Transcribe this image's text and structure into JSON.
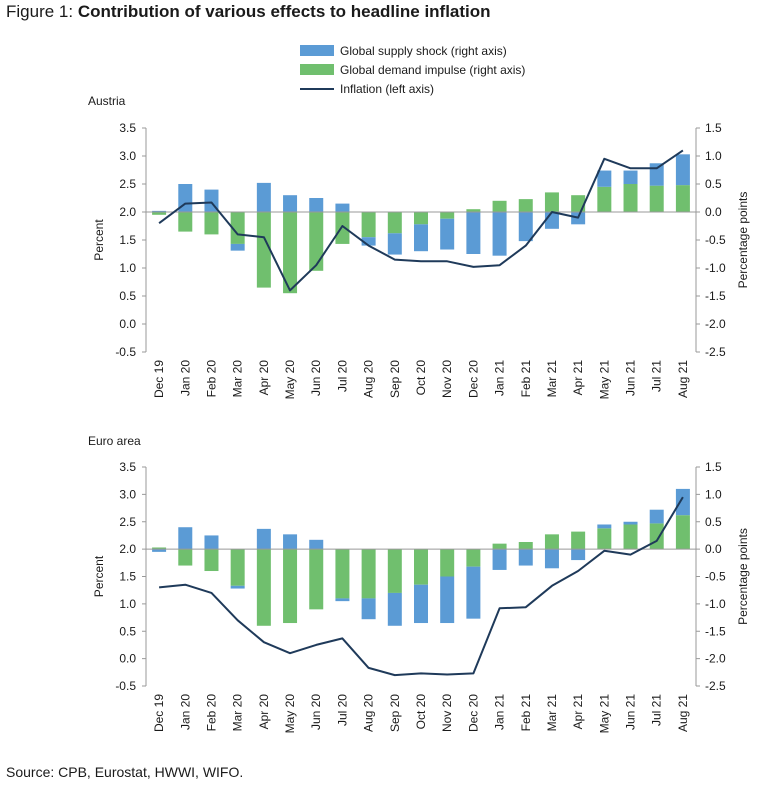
{
  "figure": {
    "prefix": "Figure 1: ",
    "title": "Contribution of various effects to headline inflation",
    "source": "Source: CPB, Eurostat, HWWI, WIFO."
  },
  "legend": {
    "supply": "Global supply shock (right axis)",
    "demand": "Global demand impulse (right axis)",
    "inflation": "Inflation (left axis)"
  },
  "colors": {
    "supply": "#5b9bd5",
    "demand": "#70bf6e",
    "inflation": "#1f3a5a",
    "axis": "#999999"
  },
  "chart_data": [
    {
      "type": "bar",
      "title": "Austria",
      "categories": [
        "Dec 19",
        "Jan 20",
        "Feb 20",
        "Mar 20",
        "Apr 20",
        "May 20",
        "Jun 20",
        "Jul 20",
        "Aug 20",
        "Sep 20",
        "Oct 20",
        "Nov 20",
        "Dec 20",
        "Jan 21",
        "Feb 21",
        "Mar 21",
        "Apr 21",
        "May 21",
        "Jun 21",
        "Jul 21",
        "Aug 21"
      ],
      "ylabel_left": "Percent",
      "ylabel_right": "Percentage points",
      "ylim_left": [
        -0.5,
        3.5
      ],
      "ylim_right": [
        -2.5,
        1.5
      ],
      "yticks_left": [
        "3.5",
        "3.0",
        "2.5",
        "2.0",
        "1.5",
        "1.0",
        "0.5",
        "0.0",
        "-0.5"
      ],
      "yticks_right": [
        "1.5",
        "1.0",
        "0.5",
        "0.0",
        "-0.5",
        "-1.0",
        "-1.5",
        "-2.0",
        "-2.5"
      ],
      "series": [
        {
          "name": "Global supply shock (right axis)",
          "axis": "right",
          "values": [
            0.02,
            0.5,
            0.4,
            -0.12,
            0.52,
            0.3,
            0.25,
            0.15,
            -0.15,
            -0.38,
            -0.48,
            -0.55,
            -0.75,
            -0.78,
            -0.52,
            -0.3,
            -0.22,
            0.29,
            0.24,
            0.4,
            0.55
          ]
        },
        {
          "name": "Global demand impulse (right axis)",
          "axis": "right",
          "values": [
            -0.05,
            -0.35,
            -0.4,
            -0.57,
            -1.35,
            -1.45,
            -1.05,
            -0.57,
            -0.45,
            -0.38,
            -0.22,
            -0.12,
            0.05,
            0.2,
            0.23,
            0.35,
            0.3,
            0.45,
            0.5,
            0.47,
            0.48
          ]
        },
        {
          "name": "Inflation (left axis)",
          "axis": "left",
          "values": [
            1.8,
            2.15,
            2.17,
            1.6,
            1.55,
            0.6,
            1.05,
            1.75,
            1.4,
            1.15,
            1.12,
            1.12,
            1.02,
            1.05,
            1.4,
            2.0,
            1.9,
            2.95,
            2.78,
            2.78,
            3.1
          ]
        }
      ]
    },
    {
      "type": "bar",
      "title": "Euro area",
      "categories": [
        "Dec 19",
        "Jan 20",
        "Feb 20",
        "Mar 20",
        "Apr 20",
        "May 20",
        "Jun 20",
        "Jul 20",
        "Aug 20",
        "Sep 20",
        "Oct 20",
        "Nov 20",
        "Dec 20",
        "Jan 21",
        "Feb 21",
        "Mar 21",
        "Apr 21",
        "May 21",
        "Jun 21",
        "Jul 21",
        "Aug 21"
      ],
      "ylabel_left": "Percent",
      "ylabel_right": "Percentage points",
      "ylim_left": [
        -0.5,
        3.5
      ],
      "ylim_right": [
        -2.5,
        1.5
      ],
      "yticks_left": [
        "3.5",
        "3.0",
        "2.5",
        "2.0",
        "1.5",
        "1.0",
        "0.5",
        "0.0",
        "-0.5"
      ],
      "yticks_right": [
        "1.5",
        "1.0",
        "0.5",
        "0.0",
        "-0.5",
        "-1.0",
        "-1.5",
        "-2.0",
        "-2.5"
      ],
      "series": [
        {
          "name": "Global supply shock (right axis)",
          "axis": "right",
          "values": [
            -0.05,
            0.4,
            0.25,
            -0.05,
            0.37,
            0.27,
            0.17,
            -0.05,
            -0.38,
            -0.6,
            -0.7,
            -0.85,
            -0.95,
            -0.38,
            -0.3,
            -0.35,
            -0.2,
            0.07,
            0.05,
            0.25,
            0.48
          ]
        },
        {
          "name": "Global demand impulse (right axis)",
          "axis": "right",
          "values": [
            0.03,
            -0.3,
            -0.4,
            -0.67,
            -1.4,
            -1.35,
            -1.1,
            -0.9,
            -0.9,
            -0.8,
            -0.65,
            -0.5,
            -0.32,
            0.1,
            0.13,
            0.27,
            0.32,
            0.38,
            0.45,
            0.47,
            0.62
          ]
        },
        {
          "name": "Inflation (left axis)",
          "axis": "left",
          "values": [
            1.3,
            1.35,
            1.2,
            0.7,
            0.3,
            0.1,
            0.25,
            0.37,
            -0.17,
            -0.3,
            -0.27,
            -0.29,
            -0.27,
            0.92,
            0.94,
            1.33,
            1.6,
            1.97,
            1.9,
            2.15,
            2.95
          ]
        }
      ]
    }
  ]
}
